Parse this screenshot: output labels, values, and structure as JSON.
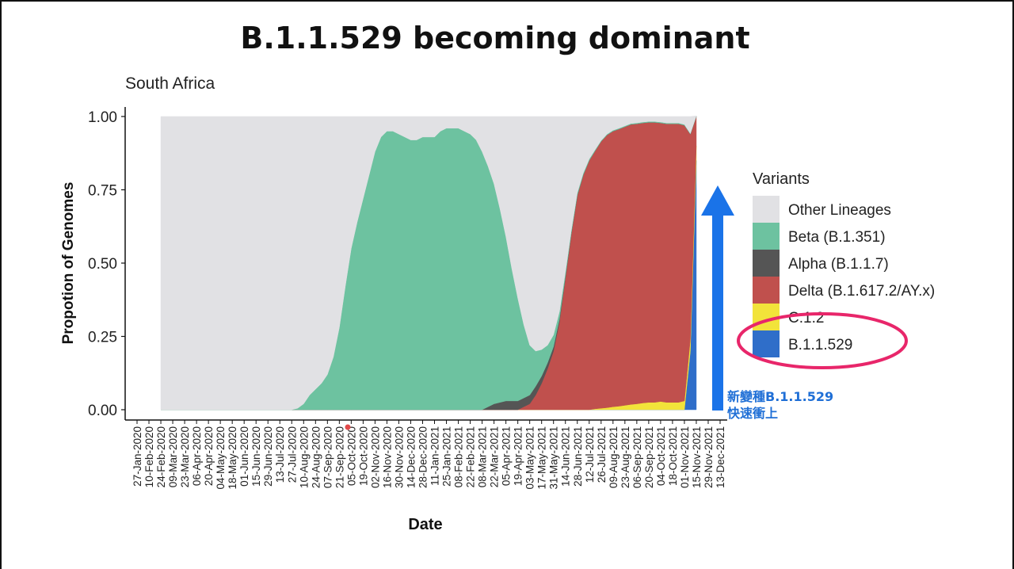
{
  "page": {
    "title": "B.1.1.529 becoming dominant",
    "annotation": {
      "line1": "新變種B.1.1.529",
      "line2": "快速衝上"
    }
  },
  "chart_data": {
    "type": "area",
    "stacked": true,
    "subtitle": "South Africa",
    "xlabel": "Date",
    "ylabel": "Propotion of Genomes",
    "ylim": [
      0,
      1
    ],
    "y_ticks": [
      "0.00",
      "0.25",
      "0.50",
      "0.75",
      "1.00"
    ],
    "x_ticks": [
      "27-Jan-2020",
      "10-Feb-2020",
      "24-Feb-2020",
      "09-Mar-2020",
      "23-Mar-2020",
      "06-Apr-2020",
      "20-Apr-2020",
      "04-May-2020",
      "18-May-2020",
      "01-Jun-2020",
      "15-Jun-2020",
      "29-Jun-2020",
      "13-Jul-2020",
      "27-Jul-2020",
      "10-Aug-2020",
      "24-Aug-2020",
      "07-Sep-2020",
      "21-Sep-2020",
      "05-Oct-2020",
      "19-Oct-2020",
      "02-Nov-2020",
      "16-Nov-2020",
      "30-Nov-2020",
      "14-Dec-2020",
      "28-Dec-2020",
      "11-Jan-2021",
      "25-Jan-2021",
      "08-Feb-2021",
      "22-Feb-2021",
      "08-Mar-2021",
      "22-Mar-2021",
      "05-Apr-2021",
      "19-Apr-2021",
      "03-May-2021",
      "17-May-2021",
      "31-May-2021",
      "14-Jun-2021",
      "28-Jun-2021",
      "12-Jul-2021",
      "26-Jul-2021",
      "09-Aug-2021",
      "23-Aug-2021",
      "06-Sep-2021",
      "20-Sep-2021",
      "04-Oct-2021",
      "18-Oct-2021",
      "01-Nov-2021",
      "15-Nov-2021",
      "29-Nov-2021",
      "13-Dec-2021"
    ],
    "legend_title": "Variants",
    "legend_position": "right",
    "x": [
      "24-Feb-2020",
      "27-Jul-2020",
      "03-Aug-2020",
      "10-Aug-2020",
      "17-Aug-2020",
      "24-Aug-2020",
      "31-Aug-2020",
      "07-Sep-2020",
      "14-Sep-2020",
      "21-Sep-2020",
      "28-Sep-2020",
      "05-Oct-2020",
      "12-Oct-2020",
      "19-Oct-2020",
      "26-Oct-2020",
      "02-Nov-2020",
      "09-Nov-2020",
      "16-Nov-2020",
      "23-Nov-2020",
      "30-Nov-2020",
      "07-Dec-2020",
      "14-Dec-2020",
      "21-Dec-2020",
      "28-Dec-2020",
      "04-Jan-2021",
      "11-Jan-2021",
      "18-Jan-2021",
      "25-Jan-2021",
      "01-Feb-2021",
      "08-Feb-2021",
      "15-Feb-2021",
      "22-Feb-2021",
      "01-Mar-2021",
      "08-Mar-2021",
      "15-Mar-2021",
      "22-Mar-2021",
      "29-Mar-2021",
      "05-Apr-2021",
      "12-Apr-2021",
      "19-Apr-2021",
      "26-Apr-2021",
      "03-May-2021",
      "10-May-2021",
      "17-May-2021",
      "24-May-2021",
      "31-May-2021",
      "07-Jun-2021",
      "14-Jun-2021",
      "21-Jun-2021",
      "28-Jun-2021",
      "05-Jul-2021",
      "12-Jul-2021",
      "19-Jul-2021",
      "26-Jul-2021",
      "02-Aug-2021",
      "09-Aug-2021",
      "16-Aug-2021",
      "23-Aug-2021",
      "30-Aug-2021",
      "06-Sep-2021",
      "13-Sep-2021",
      "20-Sep-2021",
      "27-Sep-2021",
      "04-Oct-2021",
      "11-Oct-2021",
      "18-Oct-2021",
      "25-Oct-2021",
      "01-Nov-2021",
      "08-Nov-2021",
      "15-Nov-2021"
    ],
    "series": [
      {
        "name": "B.1.1.529",
        "color": "#2f6ec9",
        "values": [
          0,
          0,
          0,
          0,
          0,
          0,
          0,
          0,
          0,
          0,
          0,
          0,
          0,
          0,
          0,
          0,
          0,
          0,
          0,
          0,
          0,
          0,
          0,
          0,
          0,
          0,
          0,
          0,
          0,
          0,
          0,
          0,
          0,
          0,
          0,
          0,
          0,
          0,
          0,
          0,
          0,
          0,
          0,
          0,
          0,
          0,
          0,
          0,
          0,
          0,
          0,
          0,
          0,
          0,
          0,
          0,
          0,
          0,
          0,
          0,
          0,
          0,
          0,
          0,
          0,
          0,
          0,
          0,
          0.2,
          0.85
        ]
      },
      {
        "name": "C.1.2",
        "color": "#f2e33a",
        "values": [
          0,
          0,
          0,
          0,
          0,
          0,
          0,
          0,
          0,
          0,
          0,
          0,
          0,
          0,
          0,
          0,
          0,
          0,
          0,
          0,
          0,
          0,
          0,
          0,
          0,
          0,
          0,
          0,
          0,
          0,
          0,
          0,
          0,
          0,
          0,
          0,
          0,
          0,
          0,
          0,
          0,
          0,
          0,
          0,
          0,
          0,
          0,
          0,
          0,
          0,
          0,
          0,
          0.003,
          0.005,
          0.007,
          0.01,
          0.012,
          0.015,
          0.018,
          0.02,
          0.023,
          0.025,
          0.025,
          0.028,
          0.025,
          0.025,
          0.025,
          0.03,
          0.04,
          0.05
        ]
      },
      {
        "name": "Delta (B.1.617.2/AY.x)",
        "color": "#c0504d",
        "values": [
          0,
          0,
          0,
          0,
          0,
          0,
          0,
          0,
          0,
          0,
          0,
          0,
          0,
          0,
          0,
          0,
          0,
          0,
          0,
          0,
          0,
          0,
          0,
          0,
          0,
          0,
          0,
          0,
          0,
          0,
          0,
          0,
          0,
          0,
          0,
          0,
          0,
          0,
          0,
          0,
          0.01,
          0.02,
          0.05,
          0.09,
          0.14,
          0.2,
          0.3,
          0.45,
          0.6,
          0.73,
          0.8,
          0.85,
          0.88,
          0.91,
          0.93,
          0.94,
          0.945,
          0.95,
          0.955,
          0.955,
          0.955,
          0.955,
          0.955,
          0.95,
          0.95,
          0.95,
          0.95,
          0.94,
          0.7,
          0.1
        ]
      },
      {
        "name": "Alpha (B.1.1.7)",
        "color": "#555555",
        "values": [
          0,
          0,
          0,
          0,
          0,
          0,
          0,
          0,
          0,
          0,
          0,
          0,
          0,
          0,
          0,
          0,
          0,
          0,
          0,
          0,
          0,
          0,
          0,
          0,
          0,
          0,
          0,
          0,
          0,
          0,
          0,
          0,
          0,
          0,
          0.01,
          0.02,
          0.025,
          0.03,
          0.03,
          0.03,
          0.03,
          0.03,
          0.03,
          0.025,
          0.02,
          0.015,
          0.01,
          0.005,
          0.003,
          0.002,
          0.001,
          0,
          0,
          0,
          0,
          0,
          0,
          0,
          0,
          0,
          0,
          0,
          0,
          0,
          0,
          0,
          0,
          0,
          0,
          0
        ]
      },
      {
        "name": "Beta (B.1.351)",
        "color": "#6dc2a0",
        "values": [
          0,
          0,
          0.005,
          0.02,
          0.05,
          0.07,
          0.09,
          0.12,
          0.18,
          0.28,
          0.42,
          0.55,
          0.64,
          0.72,
          0.8,
          0.88,
          0.93,
          0.95,
          0.95,
          0.94,
          0.93,
          0.92,
          0.92,
          0.93,
          0.93,
          0.93,
          0.95,
          0.96,
          0.96,
          0.96,
          0.95,
          0.94,
          0.92,
          0.88,
          0.82,
          0.75,
          0.66,
          0.56,
          0.45,
          0.35,
          0.25,
          0.17,
          0.12,
          0.09,
          0.06,
          0.04,
          0.025,
          0.015,
          0.01,
          0.008,
          0.006,
          0.005,
          0.004,
          0.003,
          0.003,
          0.003,
          0.003,
          0.003,
          0.003,
          0.003,
          0.003,
          0.003,
          0.003,
          0.003,
          0.003,
          0.003,
          0.003,
          0.003,
          0.002,
          0.002
        ]
      },
      {
        "name": "Other Lineages",
        "color": "#e1e1e4",
        "values": [
          1,
          1,
          0.995,
          0.98,
          0.95,
          0.93,
          0.91,
          0.88,
          0.82,
          0.72,
          0.58,
          0.45,
          0.36,
          0.28,
          0.2,
          0.12,
          0.07,
          0.05,
          0.05,
          0.06,
          0.07,
          0.08,
          0.08,
          0.07,
          0.07,
          0.07,
          0.05,
          0.04,
          0.04,
          0.04,
          0.05,
          0.06,
          0.08,
          0.12,
          0.17,
          0.23,
          0.315,
          0.41,
          0.52,
          0.62,
          0.71,
          0.78,
          0.8,
          0.795,
          0.78,
          0.745,
          0.665,
          0.53,
          0.387,
          0.26,
          0.193,
          0.145,
          0.113,
          0.082,
          0.06,
          0.047,
          0.04,
          0.032,
          0.024,
          0.022,
          0.019,
          0.017,
          0.017,
          0.019,
          0.022,
          0.022,
          0.022,
          0.027,
          0.058,
          0.0
        ]
      }
    ],
    "legend_order": [
      "Other Lineages",
      "Beta (B.1.351)",
      "Alpha (B.1.1.7)",
      "Delta (B.1.617.2/AY.x)",
      "C.1.2",
      "B.1.1.529"
    ]
  }
}
